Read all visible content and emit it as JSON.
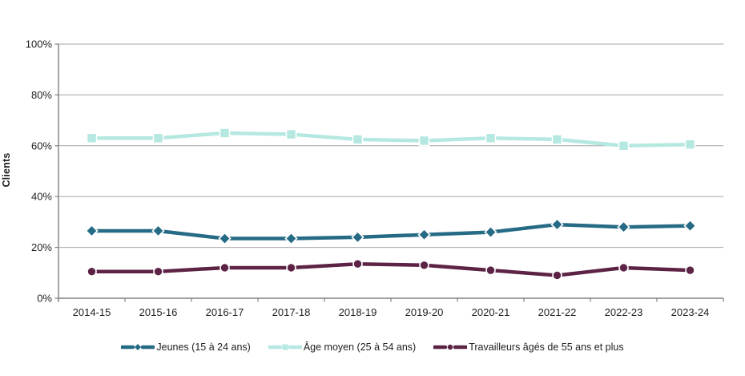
{
  "chart_data": {
    "type": "line",
    "title": "",
    "ylabel": "Clients",
    "ylim": [
      0,
      100
    ],
    "yticks": [
      0,
      20,
      40,
      60,
      80,
      100
    ],
    "ytick_suffix": "%",
    "grid": "horizontal-only",
    "legend_position": "bottom-center",
    "categories": [
      "2014-15",
      "2015-16",
      "2016-17",
      "2017-18",
      "2018-19",
      "2019-20",
      "2020-21",
      "2021-22",
      "2022-23",
      "2023-24"
    ],
    "series": [
      {
        "name": "Jeunes (15 à 24 ans)",
        "color": "#266B85",
        "marker": "diamond",
        "values": [
          26.5,
          26.5,
          23.5,
          23.5,
          24,
          25,
          26,
          29,
          28,
          28.5
        ]
      },
      {
        "name": "Âge moyen (25 à 54 ans)",
        "color": "#B5E8E1",
        "marker": "square",
        "values": [
          63,
          63,
          65,
          64.5,
          62.5,
          62,
          63,
          62.5,
          60,
          60.5
        ]
      },
      {
        "name": "Travailleurs âgés de 55 ans et plus",
        "color": "#5C2345",
        "marker": "circle",
        "values": [
          10.5,
          10.5,
          12,
          12,
          13.5,
          13,
          11,
          9,
          12,
          11
        ]
      }
    ]
  },
  "colors": {
    "background": "#FFFFFF",
    "gridline": "#A6A6A6",
    "axis": "#808080",
    "text": "#1F1F1F"
  }
}
